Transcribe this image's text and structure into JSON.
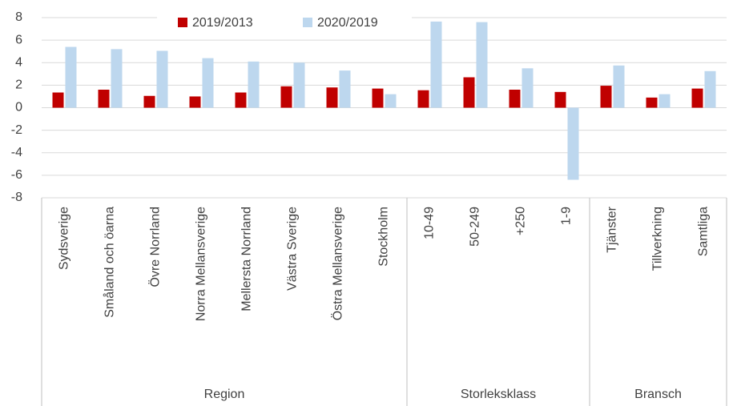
{
  "chart_data": {
    "type": "bar",
    "groups": [
      {
        "name": "Region",
        "categories": [
          "Sydsverige",
          "Småland och öarna",
          "Övre Norrland",
          "Norra Mellansverige",
          "Mellersta Norrland",
          "Västra Sverige",
          "Östra Mellansverige",
          "Stockholm"
        ]
      },
      {
        "name": "Storleksklass",
        "categories": [
          "10-49",
          "50-249",
          "+250",
          "1-9"
        ]
      },
      {
        "name": "Bransch",
        "categories": [
          "Tjänster",
          "Tillverkning",
          "Samtliga"
        ]
      }
    ],
    "series": [
      {
        "name": "2019/2013",
        "color": "#c00000",
        "values": [
          1.35,
          1.6,
          1.05,
          1.0,
          1.35,
          1.9,
          1.8,
          1.7,
          1.55,
          2.7,
          1.6,
          1.4,
          1.95,
          0.9,
          1.7
        ]
      },
      {
        "name": "2020/2019",
        "color": "#bdd7ee",
        "values": [
          5.4,
          5.2,
          5.05,
          4.4,
          4.1,
          4.0,
          3.3,
          1.2,
          7.65,
          7.6,
          3.5,
          -6.4,
          3.75,
          1.2,
          3.25
        ]
      }
    ],
    "ylim": [
      -8,
      8
    ],
    "yticks": [
      -8,
      -6,
      -4,
      -2,
      0,
      2,
      4,
      6,
      8
    ],
    "grid": true,
    "legend": "top"
  }
}
